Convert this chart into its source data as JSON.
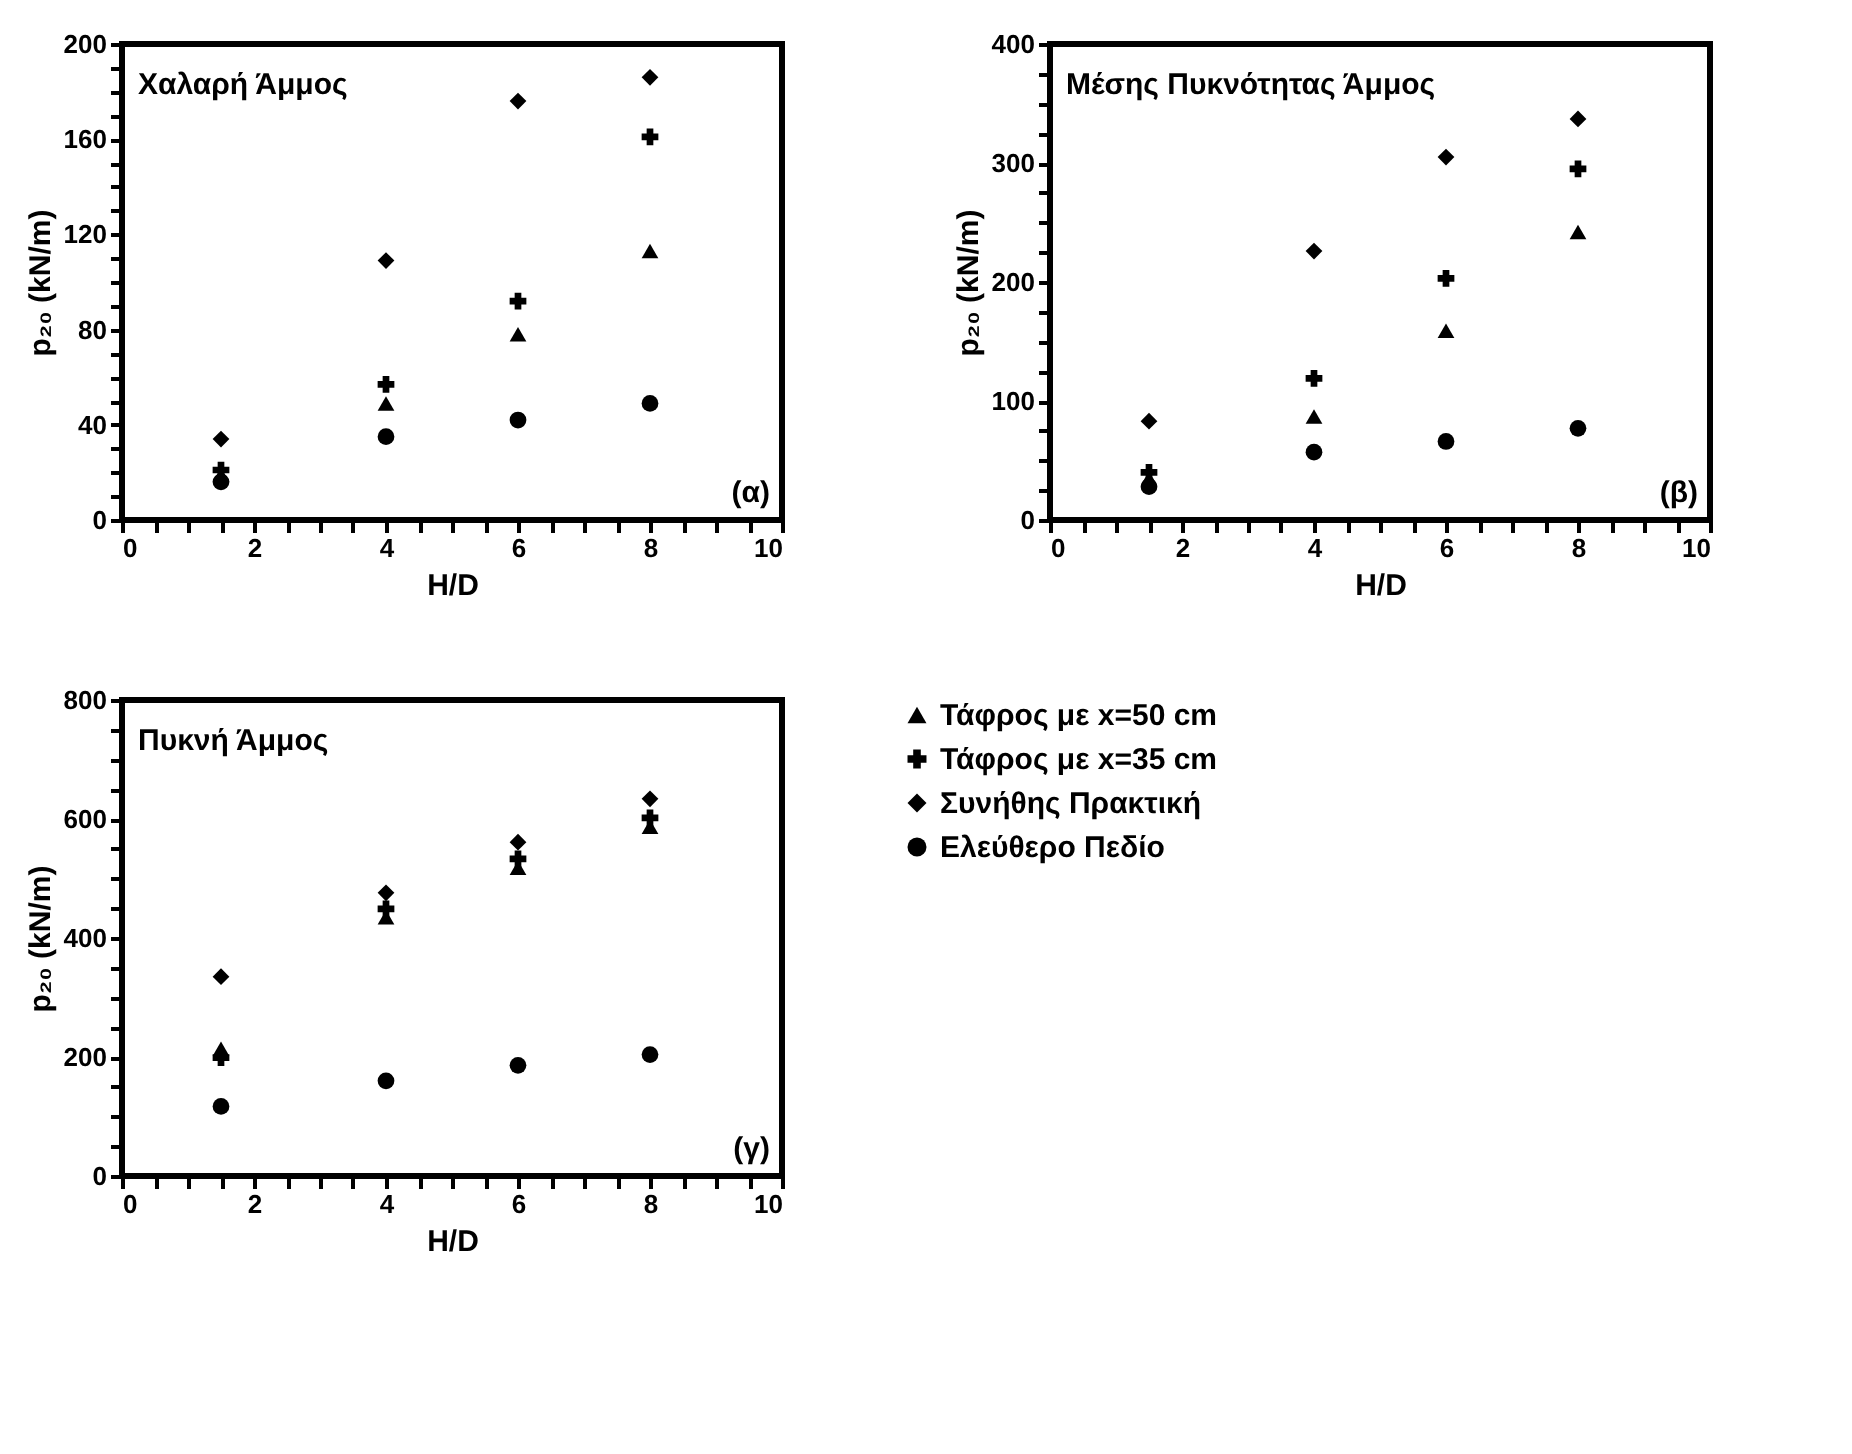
{
  "chart_data": [
    {
      "type": "scatter",
      "title": "Χαλαρή Άμμος",
      "xlabel": "H/D",
      "ylabel": "p₂₀ (kN/m)",
      "annotations": [
        "(α)"
      ],
      "x": [
        1.5,
        4,
        6,
        8
      ],
      "xlim": [
        0,
        10
      ],
      "xticks": [
        0,
        {
          "value": 0.5,
          "label": null
        },
        {
          "value": 1,
          "label": null
        },
        {
          "value": 1.5,
          "label": null
        },
        2,
        {
          "value": 2.5,
          "label": null
        },
        {
          "value": 3,
          "label": null
        },
        {
          "value": 3.5,
          "label": null
        },
        4,
        {
          "value": 4.5,
          "label": null
        },
        {
          "value": 5,
          "label": null
        },
        {
          "value": 5.5,
          "label": null
        },
        6,
        {
          "value": 6.5,
          "label": null
        },
        {
          "value": 7,
          "label": null
        },
        {
          "value": 7.5,
          "label": null
        },
        8,
        {
          "value": 8.5,
          "label": null
        },
        {
          "value": 9,
          "label": null
        },
        {
          "value": 9.5,
          "label": null
        },
        10
      ],
      "ylim": [
        0,
        200
      ],
      "yticks": [
        0,
        {
          "value": 10,
          "label": null
        },
        {
          "value": 20,
          "label": null
        },
        {
          "value": 30,
          "label": null
        },
        40,
        {
          "value": 50,
          "label": null
        },
        {
          "value": 60,
          "label": null
        },
        {
          "value": 70,
          "label": null
        },
        80,
        {
          "value": 90,
          "label": null
        },
        {
          "value": 100,
          "label": null
        },
        {
          "value": 110,
          "label": null
        },
        120,
        {
          "value": 130,
          "label": null
        },
        {
          "value": 140,
          "label": null
        },
        {
          "value": 150,
          "label": null
        },
        160,
        {
          "value": 170,
          "label": null
        },
        {
          "value": 180,
          "label": null
        },
        {
          "value": 190,
          "label": null
        },
        200
      ],
      "grid": false,
      "legend": false,
      "series": [
        {
          "color": "#000000",
          "marker": "triangle",
          "values": [
            19,
            49,
            78,
            113
          ]
        },
        {
          "color": "#000000",
          "marker": "cross",
          "values": [
            21,
            57,
            92,
            161
          ]
        },
        {
          "color": "#000000",
          "marker": "diamond",
          "values": [
            34,
            109,
            176,
            186
          ]
        },
        {
          "color": "#000000",
          "marker": "circle",
          "values": [
            16,
            35,
            42,
            49
          ]
        }
      ]
    },
    {
      "type": "scatter",
      "title": "Μέσης Πυκνότητας Άμμος",
      "xlabel": "H/D",
      "ylabel": "p₂₀ (kN/m)",
      "annotations": [
        "(β)"
      ],
      "x": [
        1.5,
        4,
        6,
        8
      ],
      "xlim": [
        0,
        10
      ],
      "xticks": [
        0,
        {
          "value": 0.5,
          "label": null
        },
        {
          "value": 1,
          "label": null
        },
        {
          "value": 1.5,
          "label": null
        },
        2,
        {
          "value": 2.5,
          "label": null
        },
        {
          "value": 3,
          "label": null
        },
        {
          "value": 3.5,
          "label": null
        },
        4,
        {
          "value": 4.5,
          "label": null
        },
        {
          "value": 5,
          "label": null
        },
        {
          "value": 5.5,
          "label": null
        },
        6,
        {
          "value": 6.5,
          "label": null
        },
        {
          "value": 7,
          "label": null
        },
        {
          "value": 7.5,
          "label": null
        },
        8,
        {
          "value": 8.5,
          "label": null
        },
        {
          "value": 9,
          "label": null
        },
        {
          "value": 9.5,
          "label": null
        },
        10
      ],
      "ylim": [
        0,
        400
      ],
      "yticks": [
        0,
        {
          "value": 25,
          "label": null
        },
        {
          "value": 50,
          "label": null
        },
        {
          "value": 75,
          "label": null
        },
        100,
        {
          "value": 125,
          "label": null
        },
        {
          "value": 150,
          "label": null
        },
        {
          "value": 175,
          "label": null
        },
        200,
        {
          "value": 225,
          "label": null
        },
        {
          "value": 250,
          "label": null
        },
        {
          "value": 275,
          "label": null
        },
        300,
        {
          "value": 325,
          "label": null
        },
        {
          "value": 350,
          "label": null
        },
        {
          "value": 375,
          "label": null
        },
        400
      ],
      "grid": false,
      "legend": false,
      "series": [
        {
          "color": "#000000",
          "marker": "triangle",
          "values": [
            35,
            87,
            159,
            242
          ]
        },
        {
          "color": "#000000",
          "marker": "cross",
          "values": [
            40,
            119,
            203,
            295
          ]
        },
        {
          "color": "#000000",
          "marker": "diamond",
          "values": [
            83,
            226,
            305,
            337
          ]
        },
        {
          "color": "#000000",
          "marker": "circle",
          "values": [
            28,
            57,
            66,
            77
          ]
        }
      ]
    },
    {
      "type": "scatter",
      "title": "Πυκνή Άμμος",
      "xlabel": "H/D",
      "ylabel": "p₂₀ (kN/m)",
      "annotations": [
        "(γ)"
      ],
      "x": [
        1.5,
        4,
        6,
        8
      ],
      "xlim": [
        0,
        10
      ],
      "xticks": [
        0,
        {
          "value": 0.5,
          "label": null
        },
        {
          "value": 1,
          "label": null
        },
        {
          "value": 1.5,
          "label": null
        },
        2,
        {
          "value": 2.5,
          "label": null
        },
        {
          "value": 3,
          "label": null
        },
        {
          "value": 3.5,
          "label": null
        },
        4,
        {
          "value": 4.5,
          "label": null
        },
        {
          "value": 5,
          "label": null
        },
        {
          "value": 5.5,
          "label": null
        },
        6,
        {
          "value": 6.5,
          "label": null
        },
        {
          "value": 7,
          "label": null
        },
        {
          "value": 7.5,
          "label": null
        },
        8,
        {
          "value": 8.5,
          "label": null
        },
        {
          "value": 9,
          "label": null
        },
        {
          "value": 9.5,
          "label": null
        },
        10
      ],
      "ylim": [
        0,
        800
      ],
      "yticks": [
        0,
        {
          "value": 50,
          "label": null
        },
        {
          "value": 100,
          "label": null
        },
        {
          "value": 150,
          "label": null
        },
        200,
        {
          "value": 250,
          "label": null
        },
        {
          "value": 300,
          "label": null
        },
        {
          "value": 350,
          "label": null
        },
        400,
        {
          "value": 450,
          "label": null
        },
        {
          "value": 500,
          "label": null
        },
        {
          "value": 550,
          "label": null
        },
        600,
        {
          "value": 650,
          "label": null
        },
        {
          "value": 700,
          "label": null
        },
        {
          "value": 750,
          "label": null
        },
        800
      ],
      "grid": false,
      "legend": "right",
      "series": [
        {
          "name": "Τάφρος με x=50 cm",
          "color": "#000000",
          "marker": "triangle",
          "values": [
            214,
            435,
            518,
            587
          ]
        },
        {
          "name": "Τάφρος με x=35 cm",
          "color": "#000000",
          "marker": "cross",
          "values": [
            199,
            449,
            533,
            602
          ]
        },
        {
          "name": "Συνήθης Πρακτική",
          "color": "#000000",
          "marker": "diamond",
          "values": [
            335,
            476,
            561,
            634
          ]
        },
        {
          "name": "Ελεύθερο Πεδίο",
          "color": "#000000",
          "marker": "circle",
          "values": [
            117,
            160,
            186,
            204
          ]
        }
      ]
    }
  ]
}
